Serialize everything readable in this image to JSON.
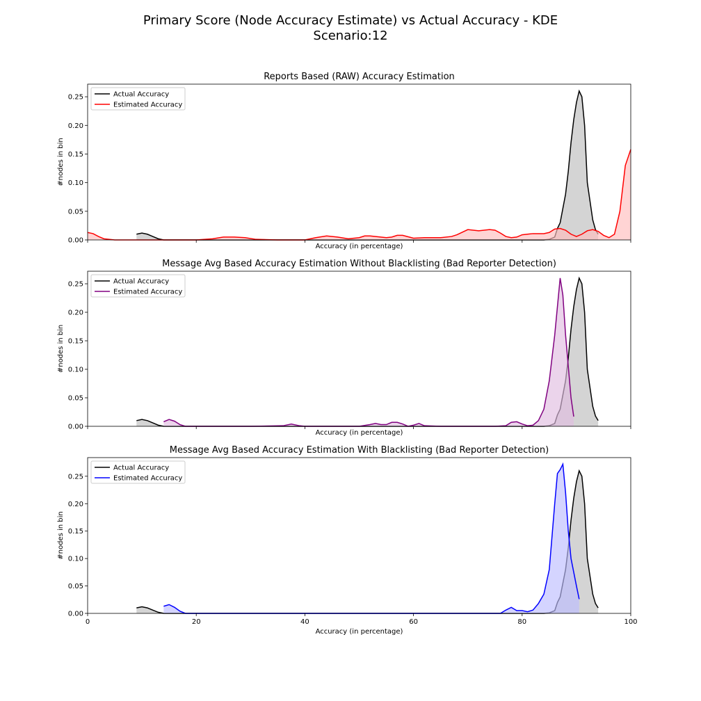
{
  "figure": {
    "title_line1": "Primary Score (Node Accuracy Estimate) vs Actual Accuracy - KDE",
    "title_line2": "Scenario:12"
  },
  "colors": {
    "actual": "#000000",
    "actual_fill": "#bdbdbd",
    "raw": "#ff0000",
    "raw_fill": "#ffbdbd",
    "no_blacklist": "#800080",
    "no_blacklist_fill": "#e0bde0",
    "blacklist": "#0000ff",
    "blacklist_fill": "#bdbdff"
  },
  "chart_data": [
    {
      "type": "area",
      "title": "Reports Based (RAW) Accuracy Estimation",
      "xlabel": "Accuracy (in percentage)",
      "ylabel": "#nodes in bin",
      "xlim": [
        0,
        100
      ],
      "ylim": [
        0,
        0.272
      ],
      "xticks": [
        0,
        20,
        40,
        60,
        80,
        100
      ],
      "yticks": [
        0.0,
        0.05,
        0.1,
        0.15,
        0.2,
        0.25
      ],
      "ytick_labels": [
        "0.00",
        "0.05",
        "0.10",
        "0.15",
        "0.20",
        "0.25"
      ],
      "show_xtick_labels": false,
      "legend_position": "top-left",
      "series": [
        {
          "name": "Actual Accuracy",
          "color_key": "actual",
          "x": [
            9,
            10,
            11,
            12,
            13,
            14,
            16,
            20,
            30,
            40,
            50,
            60,
            70,
            80,
            84,
            85,
            86,
            86.5,
            87,
            88,
            88.5,
            89,
            89.5,
            90,
            90.5,
            91,
            91.5,
            92,
            93,
            93.5,
            94
          ],
          "y": [
            0.01,
            0.012,
            0.01,
            0.006,
            0.002,
            0.0,
            0.0,
            0.0,
            0.0,
            0.0,
            0.0,
            0.0,
            0.0,
            0.0,
            0.0,
            0.001,
            0.005,
            0.02,
            0.03,
            0.08,
            0.12,
            0.17,
            0.21,
            0.24,
            0.26,
            0.25,
            0.2,
            0.1,
            0.035,
            0.018,
            0.01
          ]
        },
        {
          "name": "Estimated Accuracy",
          "color_key": "raw",
          "x": [
            0,
            1,
            2,
            3,
            5,
            10,
            20,
            23,
            25,
            27,
            29,
            31,
            35,
            40,
            42,
            44,
            46,
            48,
            50,
            51,
            52,
            55,
            56,
            57,
            58,
            60,
            62,
            65,
            67,
            68,
            70,
            72,
            74,
            75,
            76,
            77,
            78,
            79,
            80,
            82,
            84,
            85,
            86,
            87,
            88,
            89,
            90,
            91,
            92,
            93,
            94,
            95,
            96,
            97,
            98,
            99,
            100
          ],
          "y": [
            0.013,
            0.011,
            0.006,
            0.002,
            0.0,
            0.0,
            0.0,
            0.002,
            0.005,
            0.005,
            0.004,
            0.001,
            0.0,
            0.0,
            0.004,
            0.007,
            0.005,
            0.002,
            0.004,
            0.007,
            0.007,
            0.004,
            0.005,
            0.008,
            0.008,
            0.003,
            0.004,
            0.004,
            0.006,
            0.009,
            0.018,
            0.016,
            0.018,
            0.017,
            0.012,
            0.006,
            0.004,
            0.005,
            0.009,
            0.011,
            0.011,
            0.013,
            0.019,
            0.02,
            0.017,
            0.01,
            0.006,
            0.01,
            0.016,
            0.018,
            0.015,
            0.008,
            0.004,
            0.01,
            0.05,
            0.13,
            0.158
          ]
        }
      ]
    },
    {
      "type": "area",
      "title": "Message Avg Based Accuracy Estimation Without Blacklisting (Bad Reporter Detection)",
      "xlabel": "Accuracy (in percentage)",
      "ylabel": "#nodes in bin",
      "xlim": [
        0,
        100
      ],
      "ylim": [
        0,
        0.272
      ],
      "xticks": [
        0,
        20,
        40,
        60,
        80,
        100
      ],
      "yticks": [
        0.0,
        0.05,
        0.1,
        0.15,
        0.2,
        0.25
      ],
      "ytick_labels": [
        "0.00",
        "0.05",
        "0.10",
        "0.15",
        "0.20",
        "0.25"
      ],
      "show_xtick_labels": false,
      "legend_position": "top-left",
      "series": [
        {
          "name": "Actual Accuracy",
          "color_key": "actual",
          "x": [
            9,
            10,
            11,
            12,
            13,
            14,
            16,
            20,
            30,
            40,
            50,
            60,
            70,
            80,
            84,
            85,
            86,
            86.5,
            87,
            88,
            88.5,
            89,
            89.5,
            90,
            90.5,
            91,
            91.5,
            92,
            93,
            93.5,
            94
          ],
          "y": [
            0.01,
            0.012,
            0.01,
            0.006,
            0.002,
            0.0,
            0.0,
            0.0,
            0.0,
            0.0,
            0.0,
            0.0,
            0.0,
            0.0,
            0.0,
            0.001,
            0.005,
            0.02,
            0.03,
            0.08,
            0.12,
            0.17,
            0.21,
            0.24,
            0.26,
            0.25,
            0.2,
            0.1,
            0.035,
            0.018,
            0.01
          ]
        },
        {
          "name": "Estimated Accuracy",
          "color_key": "no_blacklist",
          "x": [
            14,
            15,
            16,
            17,
            18,
            20,
            30,
            36,
            37.5,
            39,
            40,
            50,
            52,
            53,
            54,
            55,
            56,
            57,
            58,
            59,
            60,
            61,
            62,
            65,
            75,
            77,
            78,
            79,
            80,
            81,
            82,
            83,
            84,
            85,
            86,
            86.5,
            87,
            87.5,
            88,
            89,
            89.5
          ],
          "y": [
            0.008,
            0.012,
            0.009,
            0.003,
            0.0,
            0.0,
            0.0,
            0.001,
            0.004,
            0.001,
            0.0,
            0.0,
            0.003,
            0.005,
            0.003,
            0.003,
            0.007,
            0.007,
            0.004,
            0.0,
            0.002,
            0.005,
            0.001,
            0.0,
            0.0,
            0.001,
            0.007,
            0.008,
            0.004,
            0.001,
            0.002,
            0.01,
            0.03,
            0.08,
            0.16,
            0.21,
            0.26,
            0.23,
            0.16,
            0.05,
            0.017
          ]
        }
      ]
    },
    {
      "type": "area",
      "title": "Message Avg Based Accuracy Estimation With Blacklisting (Bad Reporter Detection)",
      "xlabel": "Accuracy (in percentage)",
      "ylabel": "#nodes in bin",
      "xlim": [
        0,
        100
      ],
      "ylim": [
        0,
        0.284
      ],
      "xticks": [
        0,
        20,
        40,
        60,
        80,
        100
      ],
      "yticks": [
        0.0,
        0.05,
        0.1,
        0.15,
        0.2,
        0.25
      ],
      "ytick_labels": [
        "0.00",
        "0.05",
        "0.10",
        "0.15",
        "0.20",
        "0.25"
      ],
      "show_xtick_labels": true,
      "legend_position": "top-left",
      "series": [
        {
          "name": "Actual Accuracy",
          "color_key": "actual",
          "x": [
            9,
            10,
            11,
            12,
            13,
            14,
            16,
            20,
            30,
            40,
            50,
            60,
            70,
            80,
            84,
            85,
            86,
            86.5,
            87,
            88,
            88.5,
            89,
            89.5,
            90,
            90.5,
            91,
            91.5,
            92,
            93,
            93.5,
            94
          ],
          "y": [
            0.01,
            0.012,
            0.01,
            0.006,
            0.002,
            0.0,
            0.0,
            0.0,
            0.0,
            0.0,
            0.0,
            0.0,
            0.0,
            0.0,
            0.0,
            0.001,
            0.005,
            0.02,
            0.03,
            0.08,
            0.12,
            0.17,
            0.21,
            0.24,
            0.26,
            0.25,
            0.2,
            0.1,
            0.035,
            0.018,
            0.01
          ]
        },
        {
          "name": "Estimated Accuracy",
          "color_key": "blacklist",
          "x": [
            14,
            15,
            16,
            17,
            18,
            20,
            30,
            40,
            50,
            60,
            70,
            76,
            77,
            78,
            79,
            80,
            81,
            82,
            83,
            84,
            85,
            86,
            86.5,
            87,
            87.5,
            88,
            88.5,
            89,
            90,
            90.5
          ],
          "y": [
            0.013,
            0.016,
            0.011,
            0.004,
            0.0,
            0.0,
            0.0,
            0.0,
            0.0,
            0.0,
            0.0,
            0.0,
            0.006,
            0.011,
            0.005,
            0.005,
            0.003,
            0.006,
            0.018,
            0.035,
            0.08,
            0.2,
            0.255,
            0.262,
            0.272,
            0.22,
            0.15,
            0.1,
            0.05,
            0.026
          ]
        }
      ]
    }
  ]
}
